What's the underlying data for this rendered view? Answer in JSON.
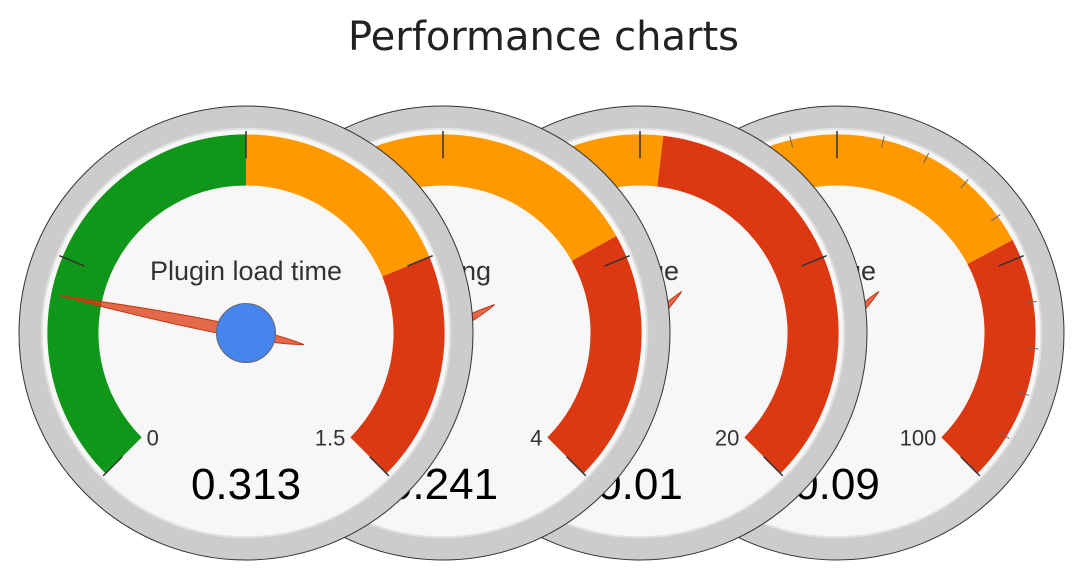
{
  "title": "Performance charts",
  "chart_data": [
    {
      "type": "gauge",
      "label": "Plugin load time",
      "value_text": "0.313",
      "value": 0.313,
      "min": 0,
      "min_label": "0",
      "max": 1.5,
      "max_label": "1.5",
      "bands": [
        {
          "from": 0,
          "to": 0.75,
          "color": "#109618"
        },
        {
          "from": 0.75,
          "to": 1.125,
          "color": "#FF9900"
        },
        {
          "from": 1.125,
          "to": 1.5,
          "color": "#DC3912"
        }
      ],
      "major_ticks": 5,
      "minor_ticks": 0
    },
    {
      "type": "gauge",
      "label": "Loading",
      "value_text": "0.241",
      "value": 0.241,
      "min": 0,
      "min_label": "0",
      "max": 4,
      "max_label": "4",
      "bands": [
        {
          "from": 0,
          "to": 2.9,
          "color": "#FF9900"
        },
        {
          "from": 2.9,
          "to": 4,
          "color": "#DC3912"
        }
      ],
      "major_ticks": 5,
      "minor_ticks": 0
    },
    {
      "type": "gauge",
      "label": "Usage",
      "value_text": "0.01",
      "value": 0.01,
      "min": 0,
      "min_label": "0",
      "max": 20,
      "max_label": "20",
      "bands": [
        {
          "from": 0,
          "to": 10.5,
          "color": "#FF9900"
        },
        {
          "from": 10.5,
          "to": 20,
          "color": "#DC3912"
        }
      ],
      "major_ticks": 5,
      "minor_ticks": 0
    },
    {
      "type": "gauge",
      "label": "Usage",
      "value_text": "0.09",
      "value": 0.09,
      "min": 0,
      "min_label": "0",
      "max": 100,
      "max_label": "100",
      "bands": [
        {
          "from": 0,
          "to": 73,
          "color": "#FF9900"
        },
        {
          "from": 73,
          "to": 100,
          "color": "#DC3912"
        }
      ],
      "major_ticks": 5,
      "minor_ticks": 4
    }
  ]
}
